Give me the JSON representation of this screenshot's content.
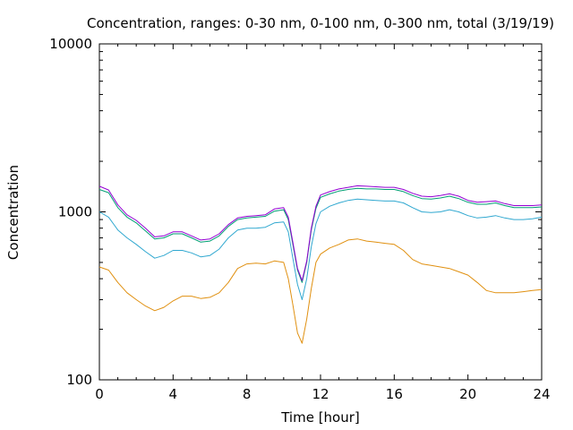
{
  "chart_data": {
    "type": "line",
    "title": "Concentration, ranges: 0-30 nm, 0-100 nm, 0-300 nm, total (3/19/19)",
    "xlabel": "Time [hour]",
    "ylabel": "Concentration",
    "xlim": [
      0,
      24
    ],
    "ylim": [
      100,
      10000
    ],
    "yscale": "log",
    "grid": false,
    "legend": "none",
    "x_ticks": [
      0,
      4,
      8,
      12,
      16,
      20,
      24
    ],
    "x_tick_labels": [
      "0",
      "4",
      "8",
      "12",
      "16",
      "20",
      "24"
    ],
    "y_ticks": [
      100,
      1000,
      10000
    ],
    "y_tick_labels": [
      "100",
      "1000",
      "10000"
    ],
    "x": [
      0,
      0.5,
      1,
      1.5,
      2,
      2.5,
      3,
      3.5,
      4,
      4.5,
      5,
      5.5,
      6,
      6.5,
      7,
      7.5,
      8,
      8.5,
      9,
      9.5,
      10,
      10.25,
      10.5,
      10.75,
      11,
      11.25,
      11.5,
      11.75,
      12,
      12.5,
      13,
      13.5,
      14,
      14.5,
      15,
      15.5,
      16,
      16.5,
      17,
      17.5,
      18,
      18.5,
      19,
      19.5,
      20,
      20.5,
      21,
      21.5,
      22,
      22.5,
      23,
      23.5,
      24
    ],
    "series": [
      {
        "color": "#e09010",
        "values": [
          470,
          450,
          380,
          330,
          300,
          275,
          258,
          270,
          295,
          315,
          315,
          305,
          310,
          330,
          380,
          460,
          490,
          495,
          490,
          510,
          500,
          400,
          280,
          190,
          165,
          230,
          350,
          500,
          560,
          610,
          640,
          680,
          690,
          670,
          660,
          650,
          640,
          590,
          520,
          490,
          480,
          470,
          460,
          440,
          420,
          380,
          340,
          330,
          330,
          330,
          335,
          340,
          345
        ]
      },
      {
        "color": "#30a8d0",
        "values": [
          1000,
          930,
          780,
          700,
          640,
          580,
          530,
          550,
          590,
          590,
          570,
          540,
          550,
          600,
          700,
          780,
          800,
          800,
          810,
          860,
          870,
          760,
          530,
          370,
          300,
          400,
          620,
          850,
          1000,
          1080,
          1130,
          1170,
          1190,
          1180,
          1170,
          1160,
          1160,
          1130,
          1060,
          1000,
          990,
          1000,
          1030,
          1000,
          950,
          920,
          930,
          950,
          920,
          900,
          900,
          910,
          930
        ]
      },
      {
        "color": "#009e73",
        "values": [
          1360,
          1300,
          1060,
          930,
          860,
          770,
          690,
          700,
          740,
          740,
          700,
          660,
          670,
          720,
          820,
          900,
          920,
          930,
          940,
          1010,
          1030,
          900,
          640,
          450,
          380,
          500,
          780,
          1050,
          1220,
          1280,
          1330,
          1360,
          1380,
          1370,
          1370,
          1360,
          1360,
          1320,
          1250,
          1200,
          1190,
          1210,
          1240,
          1200,
          1140,
          1110,
          1110,
          1130,
          1090,
          1060,
          1060,
          1060,
          1070
        ]
      },
      {
        "color": "#9400d3",
        "values": [
          1420,
          1350,
          1100,
          960,
          890,
          800,
          710,
          720,
          760,
          760,
          720,
          680,
          690,
          740,
          840,
          920,
          940,
          950,
          960,
          1040,
          1060,
          930,
          660,
          460,
          390,
          510,
          800,
          1080,
          1260,
          1320,
          1370,
          1400,
          1430,
          1420,
          1410,
          1400,
          1400,
          1360,
          1290,
          1240,
          1230,
          1250,
          1280,
          1240,
          1170,
          1140,
          1150,
          1160,
          1120,
          1090,
          1090,
          1090,
          1100
        ]
      }
    ]
  }
}
